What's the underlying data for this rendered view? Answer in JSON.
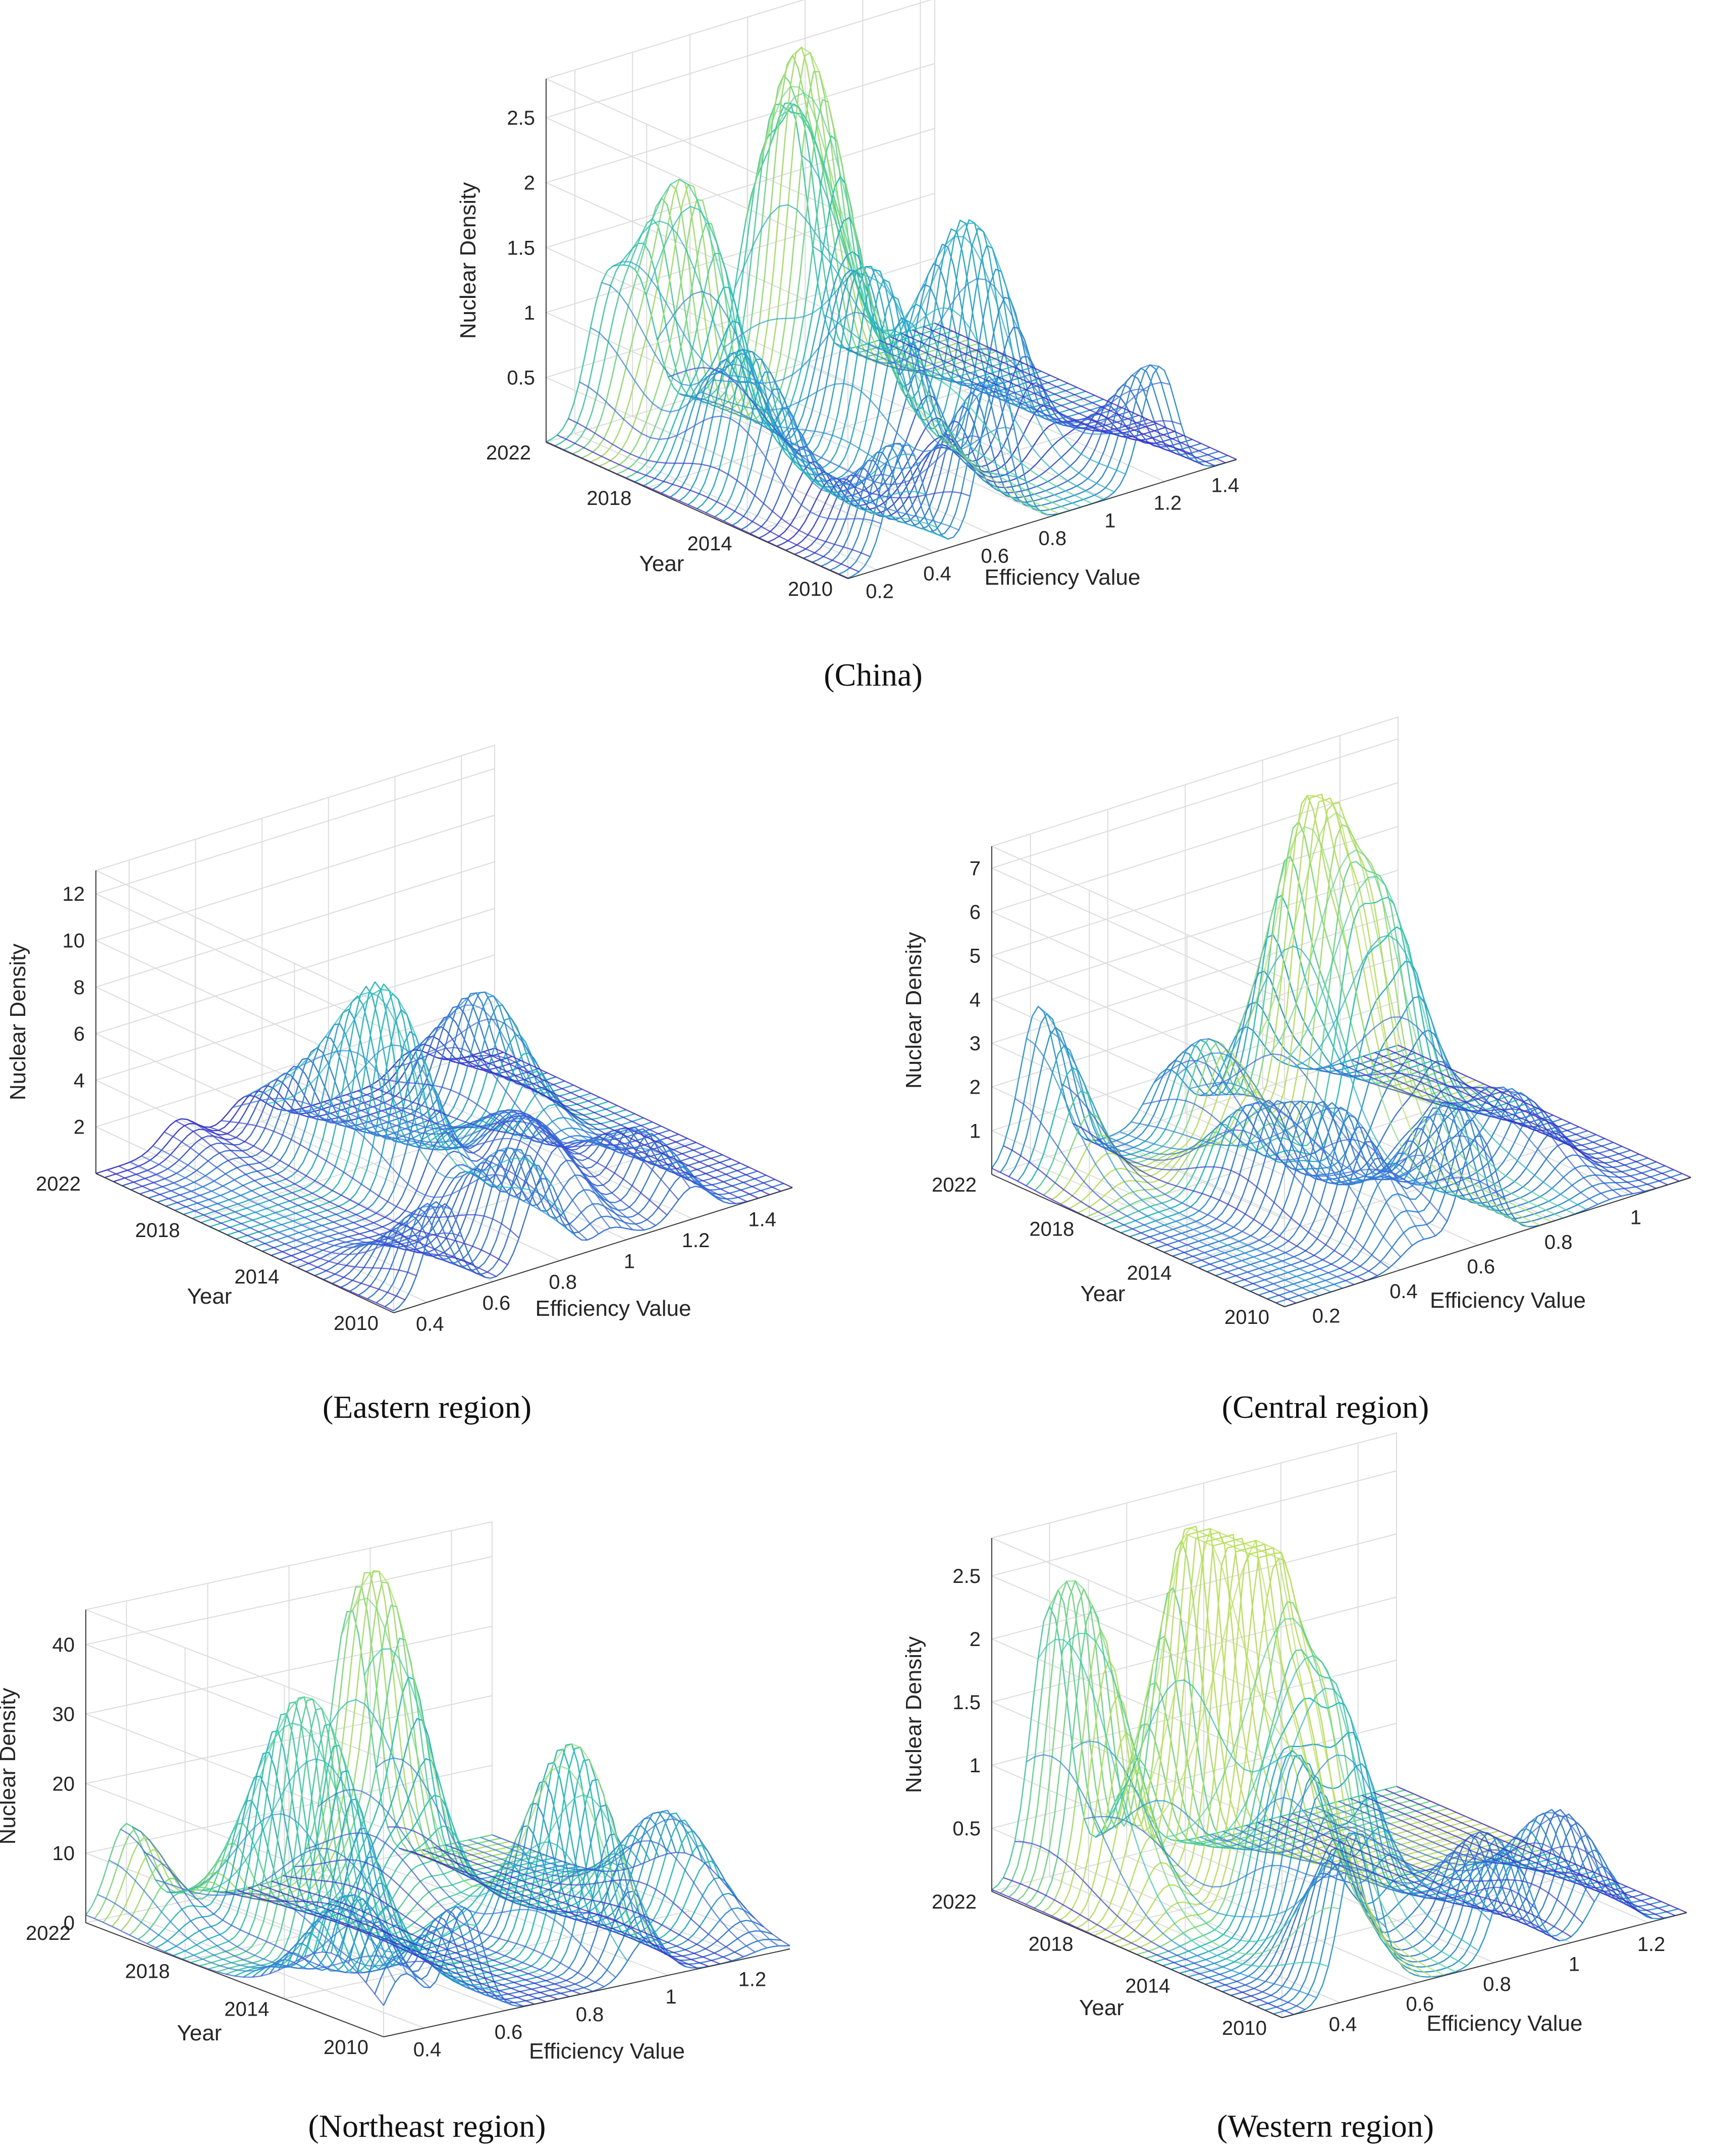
{
  "colormap": [
    "#3b1fc4",
    "#3f63d8",
    "#2c97d6",
    "#22c4b8",
    "#7bdc7a",
    "#f4e43a"
  ],
  "chart_data": [
    {
      "type": "surface",
      "caption": "(China)",
      "xlabel": "Efficiency Value",
      "ylabel": "Year",
      "zlabel": "Nuclear Density",
      "xticks": [
        "0.2",
        "0.4",
        "0.6",
        "0.8",
        "1",
        "1.2",
        "1.4"
      ],
      "yticks": [
        "2010",
        "2014",
        "2018",
        "2022"
      ],
      "zticks": [
        "0.5",
        "1",
        "1.5",
        "2",
        "2.5"
      ],
      "xlim": [
        0.1,
        1.45
      ],
      "ylim": [
        2010,
        2022
      ],
      "zlim": [
        0,
        2.8
      ],
      "peaks": [
        {
          "year": 2010,
          "eff": 0.3,
          "density": 0.9
        },
        {
          "year": 2010,
          "eff": 0.62,
          "density": 1.2
        },
        {
          "year": 2010,
          "eff": 1.18,
          "density": 0.9
        },
        {
          "year": 2016,
          "eff": 0.28,
          "density": 1.1
        },
        {
          "year": 2016,
          "eff": 0.72,
          "density": 1.4
        },
        {
          "year": 2016,
          "eff": 1.05,
          "density": 1.6
        },
        {
          "year": 2020,
          "eff": 0.42,
          "density": 1.9
        },
        {
          "year": 2020,
          "eff": 0.82,
          "density": 2.6
        },
        {
          "year": 2022,
          "eff": 0.3,
          "density": 1.0
        },
        {
          "year": 2022,
          "eff": 0.95,
          "density": 1.9
        }
      ]
    },
    {
      "type": "surface",
      "caption": "(Eastern region)",
      "xlabel": "Efficiency Value",
      "ylabel": "Year",
      "zlabel": "Nuclear Density",
      "xticks": [
        "0.4",
        "0.6",
        "0.8",
        "1",
        "1.2",
        "1.4"
      ],
      "yticks": [
        "2010",
        "2014",
        "2018",
        "2022"
      ],
      "zticks": [
        "2",
        "4",
        "6",
        "8",
        "10",
        "12"
      ],
      "xlim": [
        0.3,
        1.5
      ],
      "ylim": [
        2010,
        2022
      ],
      "zlim": [
        0,
        13
      ],
      "peaks": [
        {
          "year": 2010,
          "eff": 0.45,
          "density": 4.0
        },
        {
          "year": 2011,
          "eff": 0.75,
          "density": 4.5
        },
        {
          "year": 2012,
          "eff": 1.2,
          "density": 2.8
        },
        {
          "year": 2013,
          "eff": 0.95,
          "density": 3.5
        },
        {
          "year": 2015,
          "eff": 1.05,
          "density": 2.5
        },
        {
          "year": 2017,
          "eff": 0.8,
          "density": 8.0
        },
        {
          "year": 2019,
          "eff": 1.25,
          "density": 5.0
        },
        {
          "year": 2020,
          "eff": 0.75,
          "density": 2.5
        },
        {
          "year": 2022,
          "eff": 0.55,
          "density": 1.2
        }
      ]
    },
    {
      "type": "surface",
      "caption": "(Central region)",
      "xlabel": "Efficiency Value",
      "ylabel": "Year",
      "zlabel": "Nuclear Density",
      "xticks": [
        "0.2",
        "0.4",
        "0.6",
        "0.8",
        "1"
      ],
      "yticks": [
        "2010",
        "2014",
        "2018",
        "2022"
      ],
      "zticks": [
        "1",
        "2",
        "3",
        "4",
        "5",
        "6",
        "7"
      ],
      "xlim": [
        0.1,
        1.15
      ],
      "ylim": [
        2010,
        2022
      ],
      "zlim": [
        0,
        7.5
      ],
      "peaks": [
        {
          "year": 2011,
          "eff": 0.6,
          "density": 3.0
        },
        {
          "year": 2013,
          "eff": 0.45,
          "density": 2.5
        },
        {
          "year": 2014,
          "eff": 0.95,
          "density": 1.5
        },
        {
          "year": 2016,
          "eff": 0.4,
          "density": 2.0
        },
        {
          "year": 2018,
          "eff": 0.85,
          "density": 5.0
        },
        {
          "year": 2019,
          "eff": 0.75,
          "density": 7.4
        },
        {
          "year": 2020,
          "eff": 0.55,
          "density": 2.3
        },
        {
          "year": 2022,
          "eff": 0.22,
          "density": 3.5
        }
      ]
    },
    {
      "type": "surface",
      "caption": "(Northeast region)",
      "xlabel": "Efficiency Value",
      "ylabel": "Year",
      "zlabel": "Nuclear Density",
      "xticks": [
        "0.4",
        "0.6",
        "0.8",
        "1",
        "1.2"
      ],
      "yticks": [
        "2010",
        "2014",
        "2018",
        "2022"
      ],
      "zticks": [
        "0",
        "10",
        "20",
        "30",
        "40"
      ],
      "xlim": [
        0.3,
        1.3
      ],
      "ylim": [
        2010,
        2022
      ],
      "zlim": [
        0,
        45
      ],
      "peaks": [
        {
          "year": 2010,
          "eff": 0.5,
          "density": 16
        },
        {
          "year": 2012,
          "eff": 0.35,
          "density": 17
        },
        {
          "year": 2013,
          "eff": 0.95,
          "density": 30
        },
        {
          "year": 2014,
          "eff": 1.25,
          "density": 15
        },
        {
          "year": 2016,
          "eff": 0.55,
          "density": 19
        },
        {
          "year": 2018,
          "eff": 0.55,
          "density": 24
        },
        {
          "year": 2019,
          "eff": 0.85,
          "density": 8
        },
        {
          "year": 2021,
          "eff": 0.95,
          "density": 44
        },
        {
          "year": 2022,
          "eff": 0.4,
          "density": 13
        }
      ]
    },
    {
      "type": "surface",
      "caption": "(Western region)",
      "xlabel": "Efficiency Value",
      "ylabel": "Year",
      "zlabel": "Nuclear Density",
      "xticks": [
        "0.4",
        "0.6",
        "0.8",
        "1",
        "1.2"
      ],
      "yticks": [
        "2010",
        "2014",
        "2018",
        "2022"
      ],
      "zticks": [
        "0.5",
        "1",
        "1.5",
        "2",
        "2.5"
      ],
      "xlim": [
        0.25,
        1.3
      ],
      "ylim": [
        2010,
        2022
      ],
      "zlim": [
        0,
        2.8
      ],
      "peaks": [
        {
          "year": 2010,
          "eff": 0.45,
          "density": 1.3
        },
        {
          "year": 2011,
          "eff": 0.85,
          "density": 0.9
        },
        {
          "year": 2012,
          "eff": 1.1,
          "density": 0.8
        },
        {
          "year": 2014,
          "eff": 0.55,
          "density": 1.4
        },
        {
          "year": 2016,
          "eff": 0.75,
          "density": 1.6
        },
        {
          "year": 2017,
          "eff": 0.65,
          "density": 2.3
        },
        {
          "year": 2019,
          "eff": 0.6,
          "density": 2.7
        },
        {
          "year": 2020,
          "eff": 0.4,
          "density": 1.5
        },
        {
          "year": 2022,
          "eff": 0.4,
          "density": 1.4
        }
      ]
    }
  ]
}
